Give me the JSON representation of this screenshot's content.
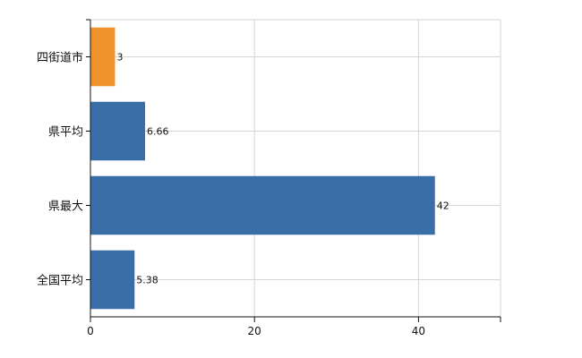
{
  "chart_data": {
    "type": "bar",
    "orientation": "horizontal",
    "title": "",
    "xlabel": "",
    "ylabel": "",
    "xlim": [
      0,
      50
    ],
    "x_ticks": [
      0,
      20,
      40
    ],
    "grid": true,
    "categories": [
      "四街道市",
      "県平均",
      "県最大",
      "全国平均"
    ],
    "values": [
      3,
      6.66,
      42,
      5.38
    ],
    "value_labels": [
      "3",
      "6.66",
      "42",
      "5.38"
    ],
    "colors": [
      "#f0922b",
      "#3a6ea8",
      "#3a6ea8",
      "#3a6ea8"
    ]
  }
}
